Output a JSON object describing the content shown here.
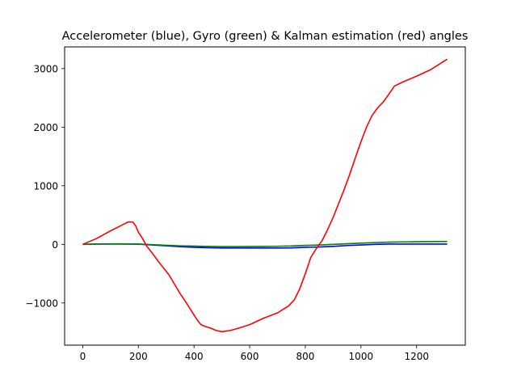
{
  "chart_data": {
    "type": "line",
    "title": "Accelerometer (blue), Gyro (green) & Kalman estimation (red) angles",
    "xlabel": "",
    "ylabel": "",
    "xlim": [
      -65,
      1375
    ],
    "ylim": [
      -1720,
      3370
    ],
    "xticks": [
      0,
      200,
      400,
      600,
      800,
      1000,
      1200
    ],
    "yticks": [
      -1000,
      0,
      1000,
      2000,
      3000
    ],
    "xtick_labels": [
      "0",
      "200",
      "400",
      "600",
      "800",
      "1000",
      "1200"
    ],
    "ytick_labels": [
      "−1000",
      "0",
      "1000",
      "2000",
      "3000"
    ],
    "grid": false,
    "legend": "none",
    "series": [
      {
        "color": "#0000ff",
        "points": [
          [
            0,
            0
          ],
          [
            50,
            5
          ],
          [
            100,
            5
          ],
          [
            150,
            5
          ],
          [
            200,
            3
          ],
          [
            250,
            -10
          ],
          [
            300,
            -25
          ],
          [
            350,
            -40
          ],
          [
            400,
            -50
          ],
          [
            450,
            -58
          ],
          [
            500,
            -62
          ],
          [
            550,
            -62
          ],
          [
            600,
            -62
          ],
          [
            650,
            -62
          ],
          [
            700,
            -62
          ],
          [
            750,
            -60
          ],
          [
            800,
            -50
          ],
          [
            850,
            -45
          ],
          [
            900,
            -35
          ],
          [
            950,
            -20
          ],
          [
            1000,
            -10
          ],
          [
            1050,
            0
          ],
          [
            1100,
            5
          ],
          [
            1150,
            5
          ],
          [
            1200,
            5
          ],
          [
            1250,
            5
          ],
          [
            1310,
            5
          ]
        ]
      },
      {
        "color": "#008000",
        "points": [
          [
            0,
            0
          ],
          [
            50,
            5
          ],
          [
            100,
            8
          ],
          [
            150,
            8
          ],
          [
            200,
            5
          ],
          [
            250,
            -5
          ],
          [
            300,
            -15
          ],
          [
            350,
            -25
          ],
          [
            400,
            -30
          ],
          [
            450,
            -35
          ],
          [
            500,
            -38
          ],
          [
            550,
            -38
          ],
          [
            600,
            -36
          ],
          [
            650,
            -34
          ],
          [
            700,
            -32
          ],
          [
            750,
            -28
          ],
          [
            800,
            -18
          ],
          [
            850,
            -10
          ],
          [
            900,
            0
          ],
          [
            950,
            10
          ],
          [
            1000,
            20
          ],
          [
            1050,
            30
          ],
          [
            1100,
            38
          ],
          [
            1150,
            42
          ],
          [
            1200,
            45
          ],
          [
            1250,
            48
          ],
          [
            1310,
            50
          ]
        ]
      },
      {
        "color": "#ff0000",
        "points": [
          [
            0,
            0
          ],
          [
            50,
            100
          ],
          [
            100,
            230
          ],
          [
            150,
            350
          ],
          [
            165,
            385
          ],
          [
            180,
            380
          ],
          [
            190,
            320
          ],
          [
            200,
            210
          ],
          [
            215,
            100
          ],
          [
            230,
            -30
          ],
          [
            250,
            -150
          ],
          [
            270,
            -280
          ],
          [
            290,
            -400
          ],
          [
            310,
            -520
          ],
          [
            330,
            -680
          ],
          [
            350,
            -840
          ],
          [
            370,
            -980
          ],
          [
            390,
            -1130
          ],
          [
            410,
            -1280
          ],
          [
            425,
            -1370
          ],
          [
            440,
            -1400
          ],
          [
            460,
            -1430
          ],
          [
            480,
            -1470
          ],
          [
            500,
            -1490
          ],
          [
            530,
            -1470
          ],
          [
            560,
            -1430
          ],
          [
            600,
            -1370
          ],
          [
            650,
            -1260
          ],
          [
            700,
            -1170
          ],
          [
            740,
            -1050
          ],
          [
            760,
            -950
          ],
          [
            780,
            -760
          ],
          [
            800,
            -500
          ],
          [
            820,
            -220
          ],
          [
            840,
            -70
          ],
          [
            860,
            60
          ],
          [
            880,
            250
          ],
          [
            900,
            460
          ],
          [
            920,
            700
          ],
          [
            940,
            940
          ],
          [
            960,
            1200
          ],
          [
            980,
            1480
          ],
          [
            1000,
            1750
          ],
          [
            1020,
            2000
          ],
          [
            1040,
            2200
          ],
          [
            1060,
            2330
          ],
          [
            1080,
            2430
          ],
          [
            1100,
            2560
          ],
          [
            1120,
            2700
          ],
          [
            1150,
            2770
          ],
          [
            1200,
            2870
          ],
          [
            1250,
            2980
          ],
          [
            1310,
            3160
          ]
        ]
      }
    ]
  }
}
